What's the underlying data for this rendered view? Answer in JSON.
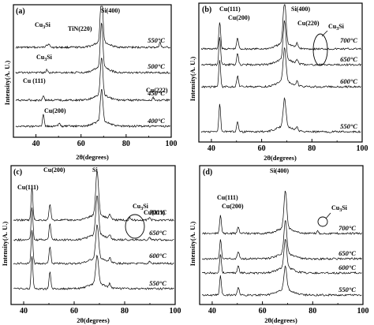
{
  "chart_data": [
    {
      "type": "line",
      "panel_label": "(a)",
      "xlabel": "2θ(degrees)",
      "ylabel": "Intensity(A. U.)",
      "xlim": [
        30,
        100
      ],
      "xticks": [
        40,
        60,
        80,
        100
      ],
      "grid": false,
      "series": [
        {
          "name": "550°C",
          "peaks": [
            {
              "x": 44.6,
              "h": 0.5
            },
            {
              "x": 45.7,
              "h": 0.6
            },
            {
              "x": 69.1,
              "h": 8
            },
            {
              "x": 95,
              "h": 0.8
            }
          ]
        },
        {
          "name": "500°C",
          "peaks": [
            {
              "x": 44.8,
              "h": 0.5
            },
            {
              "x": 69.1,
              "h": 7
            }
          ]
        },
        {
          "name": "450°C",
          "peaks": [
            {
              "x": 43.3,
              "h": 0.8
            },
            {
              "x": 69.1,
              "h": 6
            },
            {
              "x": 92,
              "h": 0.4
            }
          ]
        },
        {
          "name": "400°C",
          "peaks": [
            {
              "x": 43.3,
              "h": 2
            },
            {
              "x": 50.4,
              "h": 0.5
            },
            {
              "x": 69.1,
              "h": 5
            }
          ]
        }
      ],
      "annotations": [
        "Cu3Si",
        "TiN(220)",
        "Si(400)",
        "Cu3Si",
        "Cu (111)",
        "Cu(222)",
        "Cu(200)"
      ]
    },
    {
      "type": "line",
      "panel_label": "(b)",
      "xlabel": "2θ(degrees)",
      "ylabel": "Intensity(A. U.)",
      "xlim": [
        35,
        100
      ],
      "xticks": [
        40,
        60,
        80,
        100
      ],
      "grid": false,
      "series": [
        {
          "name": "700°C",
          "peaks": [
            {
              "x": 43.3,
              "h": 5
            },
            {
              "x": 50.4,
              "h": 2
            },
            {
              "x": 69.1,
              "h": 8
            },
            {
              "x": 74.1,
              "h": 0.8
            }
          ]
        },
        {
          "name": "650°C",
          "peaks": [
            {
              "x": 43.3,
              "h": 5
            },
            {
              "x": 50.4,
              "h": 2
            },
            {
              "x": 69.1,
              "h": 7
            },
            {
              "x": 74.1,
              "h": 0.8
            }
          ]
        },
        {
          "name": "600°C",
          "peaks": [
            {
              "x": 43.3,
              "h": 5
            },
            {
              "x": 50.4,
              "h": 2
            },
            {
              "x": 69.1,
              "h": 6
            },
            {
              "x": 74.1,
              "h": 0.8
            }
          ]
        },
        {
          "name": "550°C",
          "peaks": [
            {
              "x": 43.3,
              "h": 5
            },
            {
              "x": 50.4,
              "h": 2
            },
            {
              "x": 69.1,
              "h": 5
            },
            {
              "x": 74.1,
              "h": 0.8
            }
          ]
        }
      ],
      "annotations": [
        "Cu(111)",
        "Cu(200)",
        "Si(400)",
        "Cu(220)",
        "Cu3Si"
      ]
    },
    {
      "type": "line",
      "panel_label": "(c)",
      "xlabel": "2θ(degrees)",
      "ylabel": "Intensity(A. U.)",
      "xlim": [
        35,
        100
      ],
      "xticks": [
        40,
        60,
        80,
        100
      ],
      "grid": false,
      "series": [
        {
          "name": "700°C",
          "peaks": [
            {
              "x": 43.3,
              "h": 6
            },
            {
              "x": 50.4,
              "h": 3
            },
            {
              "x": 69.1,
              "h": 8
            },
            {
              "x": 74.1,
              "h": 0.8
            },
            {
              "x": 82,
              "h": 0.5
            },
            {
              "x": 89.9,
              "h": 0.5
            }
          ]
        },
        {
          "name": "650°C",
          "peaks": [
            {
              "x": 43.3,
              "h": 6
            },
            {
              "x": 50.4,
              "h": 3
            },
            {
              "x": 69.1,
              "h": 7
            },
            {
              "x": 74.1,
              "h": 0.8
            },
            {
              "x": 89.9,
              "h": 0.4
            }
          ]
        },
        {
          "name": "600°C",
          "peaks": [
            {
              "x": 43.3,
              "h": 6
            },
            {
              "x": 50.4,
              "h": 3
            },
            {
              "x": 69.1,
              "h": 6
            },
            {
              "x": 74.1,
              "h": 0.8
            },
            {
              "x": 89.9,
              "h": 0.4
            }
          ]
        },
        {
          "name": "550°C",
          "peaks": [
            {
              "x": 43.3,
              "h": 6
            },
            {
              "x": 50.4,
              "h": 3
            },
            {
              "x": 69.1,
              "h": 5
            },
            {
              "x": 74.1,
              "h": 0.7
            }
          ]
        }
      ],
      "annotations": [
        "Cu(111)",
        "Cu(200)",
        "Si",
        "Cu3Si",
        "Cu(311)"
      ]
    },
    {
      "type": "line",
      "panel_label": "(d)",
      "xlabel": "2θ(degrees)",
      "ylabel": "Intensity(A. U.)",
      "xlim": [
        35,
        100
      ],
      "xticks": [
        40,
        60,
        80,
        100
      ],
      "grid": false,
      "series": [
        {
          "name": "700°C",
          "peaks": [
            {
              "x": 43.3,
              "h": 4
            },
            {
              "x": 50.4,
              "h": 1.5
            },
            {
              "x": 69.1,
              "h": 8
            },
            {
              "x": 82,
              "h": 0.5
            }
          ]
        },
        {
          "name": "650°C",
          "peaks": [
            {
              "x": 43.3,
              "h": 4
            },
            {
              "x": 50.4,
              "h": 1.5
            },
            {
              "x": 69.1,
              "h": 7
            }
          ]
        },
        {
          "name": "600°C",
          "peaks": [
            {
              "x": 43.3,
              "h": 4
            },
            {
              "x": 50.4,
              "h": 1.5
            },
            {
              "x": 69.1,
              "h": 6
            }
          ]
        },
        {
          "name": "550°C",
          "peaks": [
            {
              "x": 43.3,
              "h": 4
            },
            {
              "x": 50.4,
              "h": 1.5
            },
            {
              "x": 69.1,
              "h": 5
            }
          ]
        }
      ],
      "annotations": [
        "Si(400)",
        "Cu(111)",
        "Cu(200)",
        "Cu3Si"
      ]
    }
  ]
}
